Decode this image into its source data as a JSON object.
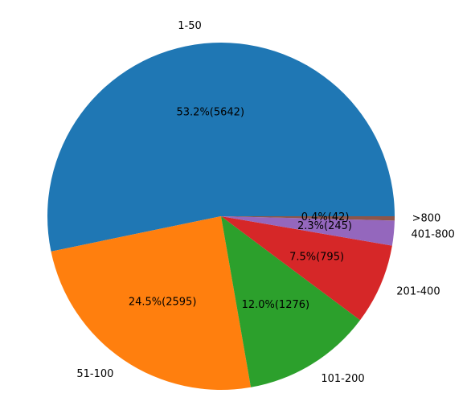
{
  "chart_data": {
    "type": "pie",
    "title": "",
    "start_angle_deg": 0,
    "direction": "counterclockwise",
    "slices": [
      {
        "label": "1-50",
        "value": 5642,
        "percent_label": "53.2%(5642)",
        "color": "#1f77b4"
      },
      {
        "label": "51-100",
        "value": 2595,
        "percent_label": "24.5%(2595)",
        "color": "#ff7f0e"
      },
      {
        "label": "101-200",
        "value": 1276,
        "percent_label": "12.0%(1276)",
        "color": "#2ca02c"
      },
      {
        "label": "201-400",
        "value": 795,
        "percent_label": "7.5%(795)",
        "color": "#d62728"
      },
      {
        "label": "401-800",
        "value": 245,
        "percent_label": "2.3%(245)",
        "color": "#9467bd"
      },
      {
        "label": ">800",
        "value": 42,
        "percent_label": "0.4%(42)",
        "color": "#8c564b"
      }
    ]
  }
}
